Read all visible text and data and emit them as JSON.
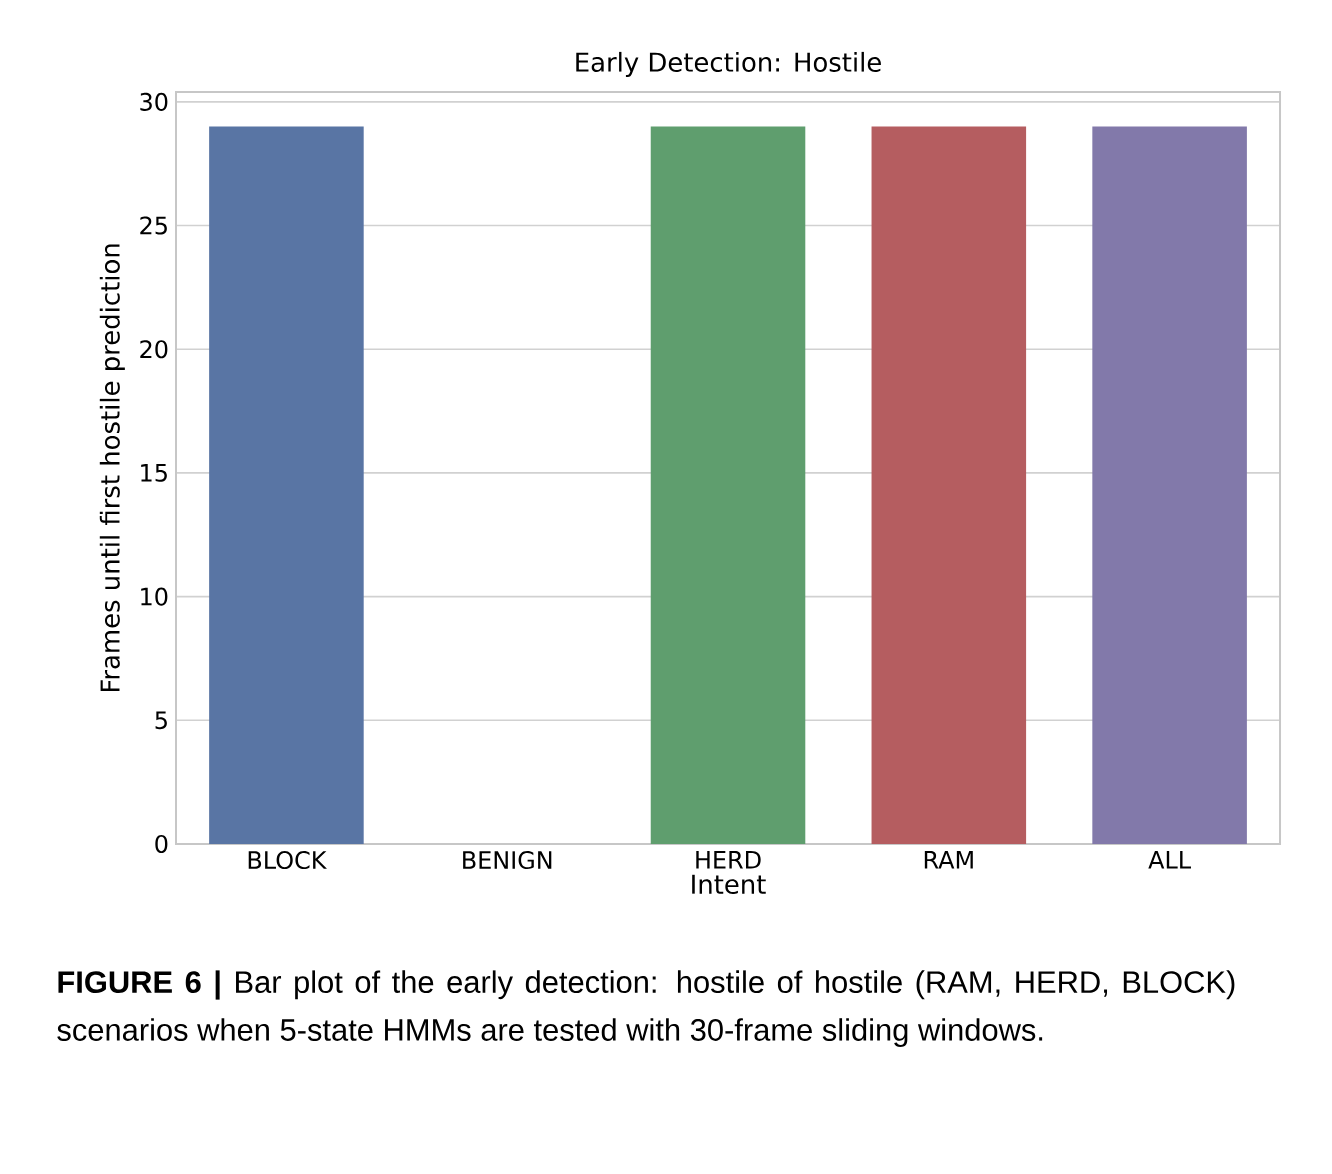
{
  "chart_data": {
    "type": "bar",
    "title": "Early Detection: Hostile",
    "xlabel": "Intent",
    "ylabel": "Frames until first hostile prediction",
    "categories": [
      "BLOCK",
      "BENIGN",
      "HERD",
      "RAM",
      "ALL"
    ],
    "values": [
      29,
      null,
      29,
      29,
      29
    ],
    "colors": [
      "#5975a4",
      null,
      "#5f9e6e",
      "#b55d60",
      "#8279aa"
    ],
    "ylim": [
      0,
      30.4
    ],
    "yticks": [
      0,
      5,
      10,
      15,
      20,
      25,
      30
    ],
    "grid": "y",
    "annotations": [
      "**FIGURE 6 |** Bar plot of the early detection: hostile of hostile (RAM, HERD, BLOCK) scenarios when 5-state HMMs are tested with 30-frame sliding windows."
    ]
  }
}
